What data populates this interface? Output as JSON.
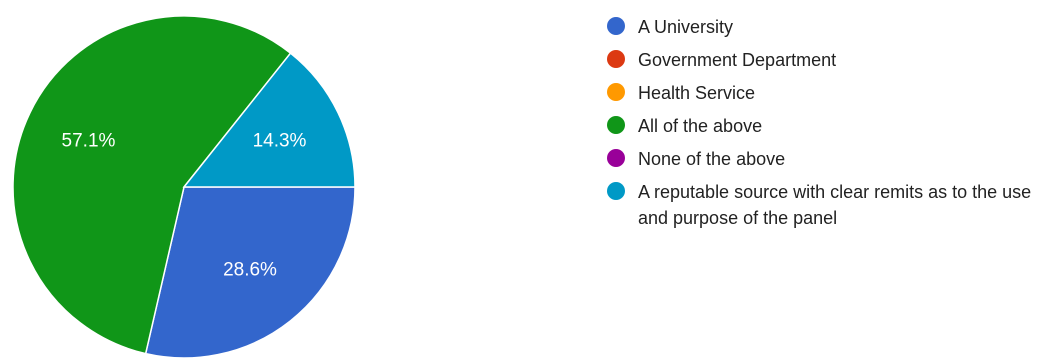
{
  "chart_data": {
    "type": "pie",
    "title": "",
    "slices": [
      {
        "label": "A University",
        "value": 28.6,
        "value_label": "28.6%",
        "color": "#3366cc"
      },
      {
        "label": "Government Department",
        "value": 0,
        "value_label": "",
        "color": "#dc3912"
      },
      {
        "label": "Health Service",
        "value": 0,
        "value_label": "",
        "color": "#ff9900"
      },
      {
        "label": "All of the above",
        "value": 57.1,
        "value_label": "57.1%",
        "color": "#109618"
      },
      {
        "label": "None of the above",
        "value": 0,
        "value_label": "",
        "color": "#990099"
      },
      {
        "label": "A reputable source with clear remits as to the use and purpose of the panel",
        "value": 14.3,
        "value_label": "14.3%",
        "color": "#0099c6"
      }
    ],
    "legend_position": "right"
  }
}
